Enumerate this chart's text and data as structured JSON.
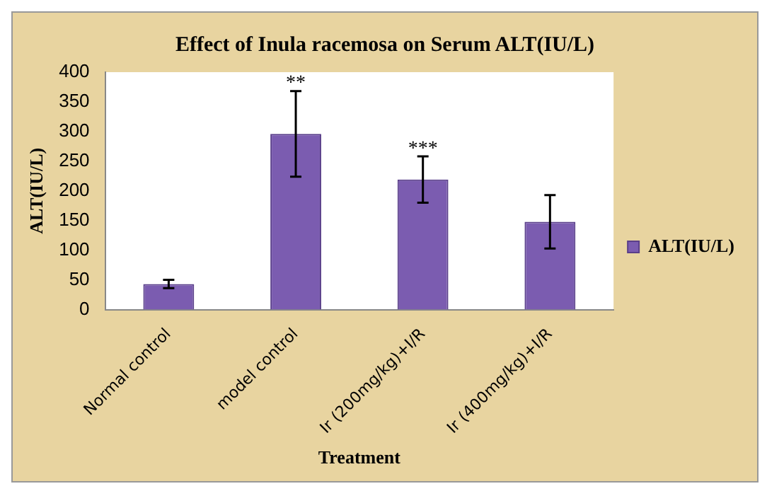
{
  "chart_data": {
    "type": "bar",
    "title": "Effect of Inula racemosa on Serum ALT(IU/L)",
    "xlabel": "Treatment",
    "ylabel": "ALT(IU/L)",
    "categories": [
      "Normal control",
      "model control",
      "Ir (200mg/kg)+I/R",
      "Ir (400mg/kg)+I/R"
    ],
    "series": [
      {
        "name": "ALT(IU/L)",
        "color": "#7b5cb0",
        "values": [
          43,
          296,
          219,
          148
        ],
        "errors": [
          7,
          72,
          39,
          45
        ]
      }
    ],
    "annotations": [
      {
        "text": "**",
        "x": "model control",
        "y": 369
      },
      {
        "text": "***",
        "x": "Ir (200mg/kg)+I/R",
        "y": 258
      }
    ],
    "ylim": [
      0,
      400
    ],
    "yticks": [
      0,
      50,
      100,
      150,
      200,
      250,
      300,
      350,
      400
    ],
    "grid": false,
    "legend": "right"
  }
}
